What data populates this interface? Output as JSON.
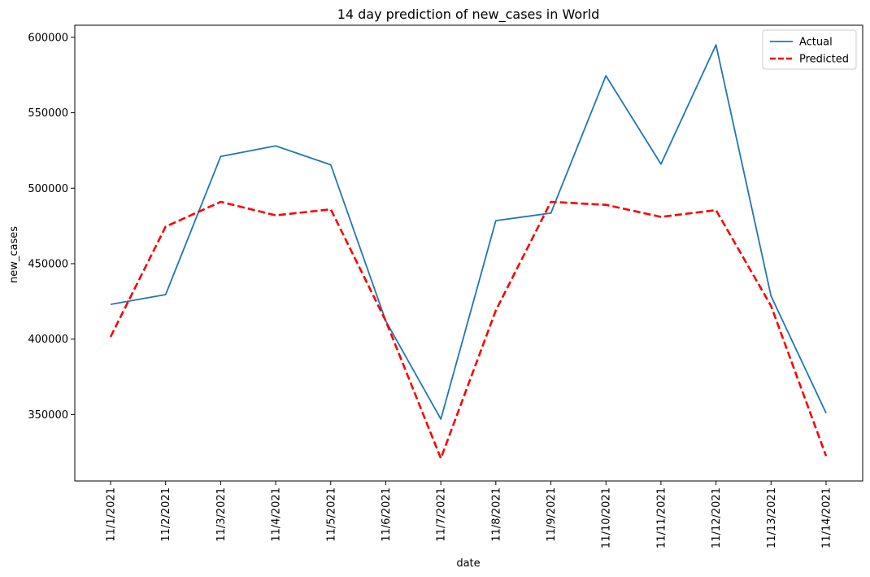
{
  "chart_data": {
    "type": "line",
    "title": "14 day prediction of new_cases in World",
    "xlabel": "date",
    "ylabel": "new_cases",
    "categories": [
      "11/1/2021",
      "11/2/2021",
      "11/3/2021",
      "11/4/2021",
      "11/5/2021",
      "11/6/2021",
      "11/7/2021",
      "11/8/2021",
      "11/9/2021",
      "11/10/2021",
      "11/11/2021",
      "11/12/2021",
      "11/13/2021",
      "11/14/2021"
    ],
    "ylim": [
      306000,
      608000
    ],
    "yticks": [
      350000,
      400000,
      450000,
      500000,
      550000,
      600000
    ],
    "grid": false,
    "legend_position": "top-right",
    "series": [
      {
        "name": "Actual",
        "color": "#1f77b4",
        "style": "solid",
        "values": [
          423000,
          429500,
          521000,
          528000,
          515500,
          412000,
          347000,
          478500,
          483500,
          574500,
          516000,
          595000,
          428500,
          351000
        ]
      },
      {
        "name": "Predicted",
        "color": "#ff0000",
        "style": "dashed",
        "values": [
          401500,
          474500,
          491000,
          482000,
          486000,
          412000,
          321000,
          419000,
          491000,
          489000,
          481000,
          485500,
          422000,
          322500
        ]
      }
    ]
  }
}
